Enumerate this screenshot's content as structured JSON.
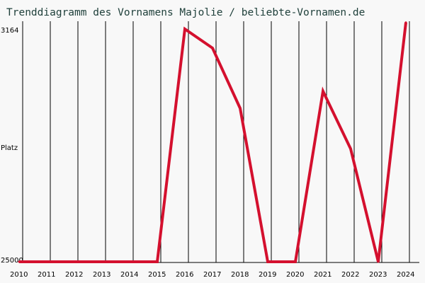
{
  "chart_data": {
    "type": "line",
    "title": "Trenddiagramm des Vornamens Majolie / beliebte-Vornamen.de",
    "ylabel": "Platz",
    "y_axis": {
      "top_label": "3164",
      "bottom_label": "25000",
      "inverted": true
    },
    "x": [
      "2010",
      "2011",
      "2012",
      "2013",
      "2014",
      "2015",
      "2016",
      "2017",
      "2018",
      "2019",
      "2020",
      "2021",
      "2022",
      "2023",
      "2024"
    ],
    "series": [
      {
        "values": [
          25000,
          25000,
          25000,
          25000,
          25000,
          25000,
          3164,
          4950,
          10600,
          25000,
          25000,
          9000,
          14400,
          25000,
          2550
        ]
      }
    ],
    "line_color": "#d4102e",
    "grid": true
  }
}
